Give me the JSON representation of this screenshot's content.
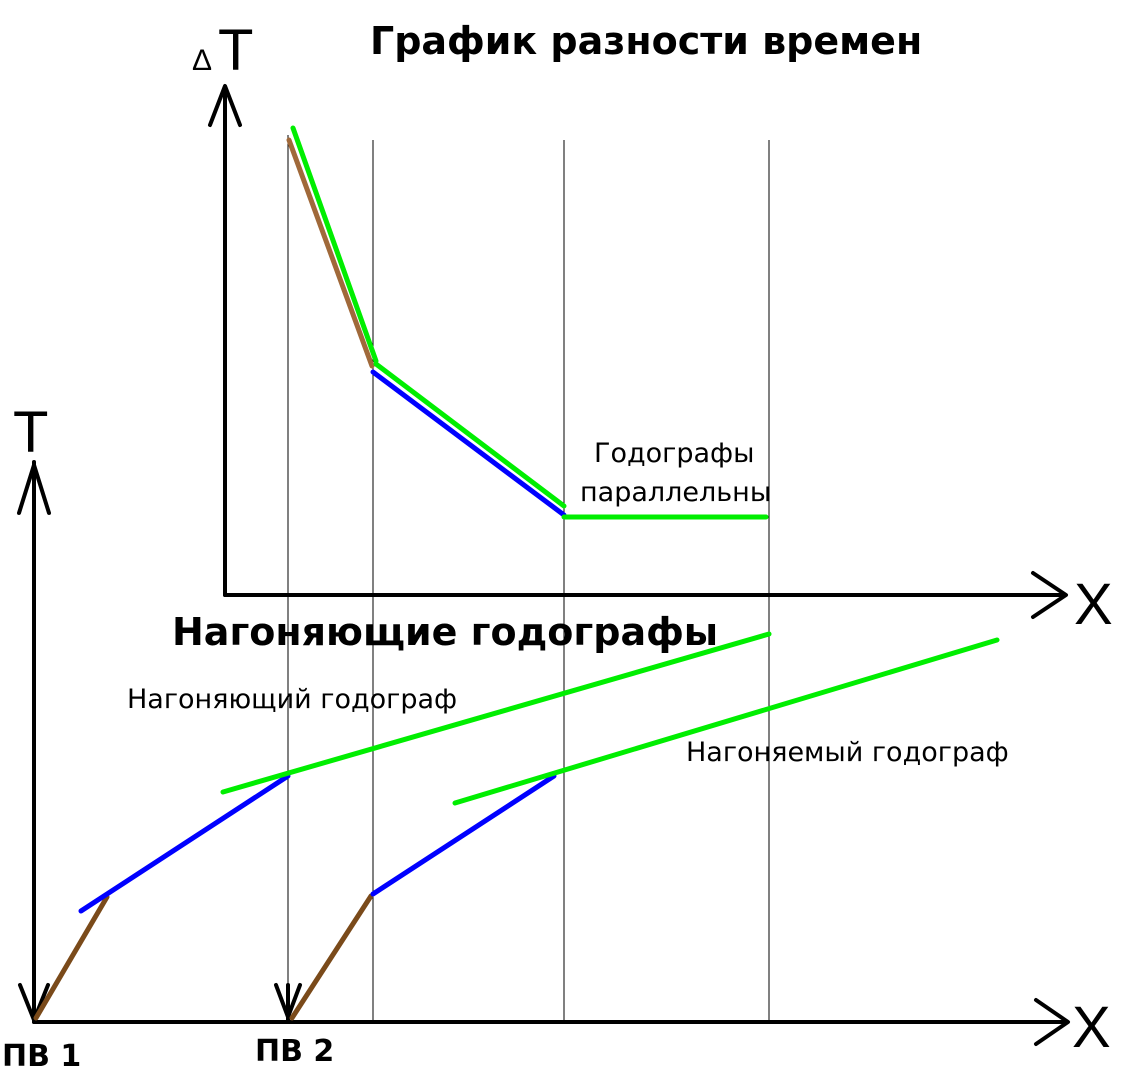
{
  "top_graph": {
    "title": "График разности времен",
    "y_axis_delta": "Δ",
    "y_axis_letter": "T",
    "x_axis_label": "X",
    "annotation_line1": "Годографы",
    "annotation_line2": "параллельны"
  },
  "bottom_graph": {
    "title": "Нагоняющие годографы",
    "y_axis_label": "T",
    "x_axis_label": "X",
    "catching_label": "Нагоняющий годограф",
    "caught_label": "Нагоняемый годограф",
    "source_1": "ПВ 1",
    "source_2": "ПВ 2"
  },
  "colors": {
    "axis": "#000000",
    "guide": "#000000",
    "direct_wave": "#7a4a1a",
    "diff_brown": "#a0693a",
    "refracted_1": "#0000ff",
    "refracted_2": "#00ee00"
  }
}
